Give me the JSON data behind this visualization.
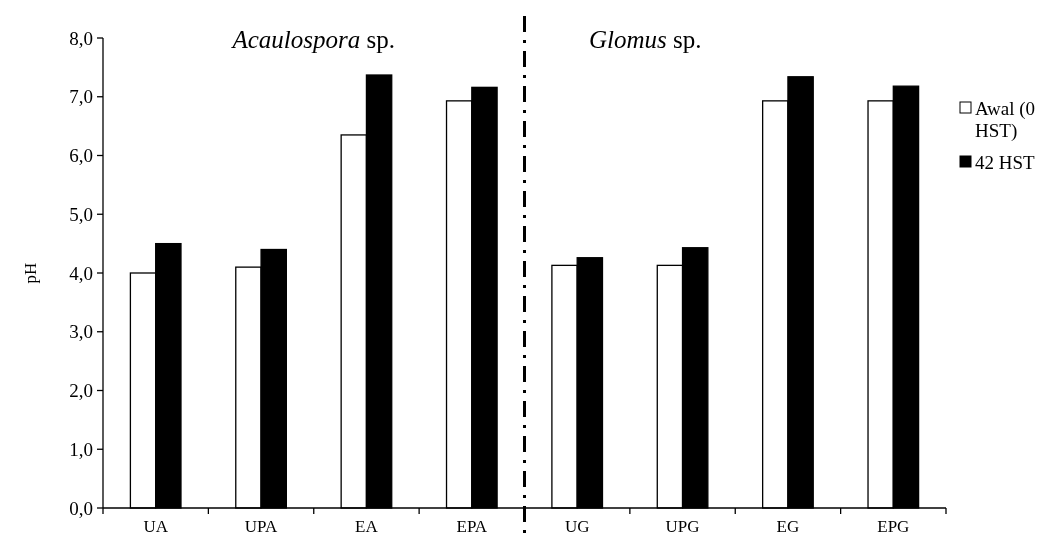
{
  "chart_data": {
    "type": "bar",
    "ylabel": "pH",
    "categories": [
      "UA",
      "UPA",
      "EA",
      "EPA",
      "UG",
      "UPG",
      "EG",
      "EPG"
    ],
    "series": [
      {
        "name": "Awal (0 HST)",
        "color": "#ffffff",
        "values": [
          4.0,
          4.1,
          6.35,
          6.93,
          4.13,
          4.13,
          6.93,
          6.93
        ]
      },
      {
        "name": "42 HST",
        "color": "#000000",
        "values": [
          4.5,
          4.4,
          7.37,
          7.16,
          4.26,
          4.43,
          7.34,
          7.18
        ]
      }
    ],
    "ylim": [
      0,
      8
    ],
    "yticks": [
      {
        "value": 0,
        "label": "0,0"
      },
      {
        "value": 1,
        "label": "1,0"
      },
      {
        "value": 2,
        "label": "2,0"
      },
      {
        "value": 3,
        "label": "3,0"
      },
      {
        "value": 4,
        "label": "4,0"
      },
      {
        "value": 5,
        "label": "5,0"
      },
      {
        "value": 6,
        "label": "6,0"
      },
      {
        "value": 7,
        "label": "7,0"
      },
      {
        "value": 8,
        "label": "8,0"
      }
    ],
    "annotations": [
      "Acaulospora sp.",
      "Glomus sp."
    ],
    "legend": "right",
    "grid": false
  }
}
